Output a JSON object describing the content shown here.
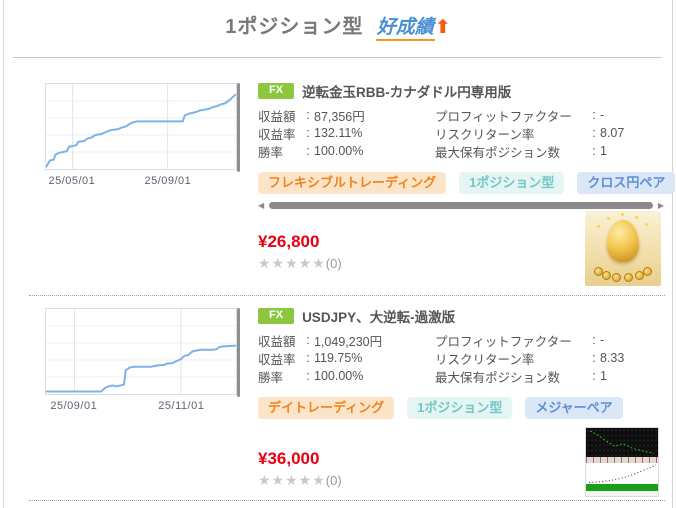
{
  "ui": {
    "colon": ":"
  },
  "header": {
    "title": "1ポジション型",
    "highlight": "好成績",
    "arrow": "⬆"
  },
  "icons": {
    "scroll_left": "◀",
    "scroll_right": "▶"
  },
  "products": [
    {
      "badge": "FX",
      "title": "逆転金玉RBB-カナダドル円専用版",
      "stats_left": [
        {
          "label": "収益額",
          "value": "87,356円"
        },
        {
          "label": "収益率",
          "value": "132.11%"
        },
        {
          "label": "勝率",
          "value": "100.00%"
        }
      ],
      "stats_right": [
        {
          "label": "プロフィットファクター",
          "value": "-"
        },
        {
          "label": "リスクリターン率",
          "value": "8.07"
        },
        {
          "label": "最大保有ポジション数",
          "value": "1"
        }
      ],
      "tags": [
        {
          "label": "フレキシブルトレーディング",
          "style": "orange"
        },
        {
          "label": "1ポジション型",
          "style": "teal"
        },
        {
          "label": "クロス円ペア",
          "style": "blue"
        }
      ],
      "price": "¥26,800",
      "stars": "★★★★★",
      "reviews": "(0)",
      "thumbnail": "golden-egg-with-coins"
    },
    {
      "badge": "FX",
      "title": "USDJPY、大逆転-過激版",
      "stats_left": [
        {
          "label": "収益額",
          "value": "1,049,230円"
        },
        {
          "label": "収益率",
          "value": "119.75%"
        },
        {
          "label": "勝率",
          "value": "100.00%"
        }
      ],
      "stats_right": [
        {
          "label": "プロフィットファクター",
          "value": "-"
        },
        {
          "label": "リスクリターン率",
          "value": "8.33"
        },
        {
          "label": "最大保有ポジション数",
          "value": "1"
        }
      ],
      "tags": [
        {
          "label": "デイトレーディング",
          "style": "orange"
        },
        {
          "label": "1ポジション型",
          "style": "teal"
        },
        {
          "label": "メジャーペア",
          "style": "blue"
        }
      ],
      "price": "¥36,000",
      "stars": "★★★★★",
      "reviews": "(0)",
      "thumbnail": "mt4-backtest-screenshot"
    }
  ],
  "chart_data": [
    {
      "type": "line",
      "title": "equity curve - 逆転金玉RBB",
      "line_color": "#7cb3e8",
      "grid": true,
      "x_ticks": [
        {
          "label": "25/05/01",
          "x": 14
        },
        {
          "label": "25/09/01",
          "x": 64
        }
      ],
      "points": [
        [
          0,
          2
        ],
        [
          1,
          6
        ],
        [
          2,
          10
        ],
        [
          4,
          11
        ],
        [
          5,
          17
        ],
        [
          7,
          19
        ],
        [
          9,
          20
        ],
        [
          11,
          21
        ],
        [
          12,
          26
        ],
        [
          14,
          27
        ],
        [
          16,
          28
        ],
        [
          17,
          32
        ],
        [
          20,
          33
        ],
        [
          22,
          36
        ],
        [
          24,
          37
        ],
        [
          26,
          40
        ],
        [
          29,
          41
        ],
        [
          31,
          43
        ],
        [
          33,
          45
        ],
        [
          35,
          46
        ],
        [
          38,
          47
        ],
        [
          40,
          49
        ],
        [
          42,
          50
        ],
        [
          44,
          53
        ],
        [
          46,
          55
        ],
        [
          48,
          56
        ],
        [
          50,
          56
        ],
        [
          72,
          56
        ],
        [
          73,
          63
        ],
        [
          75,
          65
        ],
        [
          77,
          66
        ],
        [
          79,
          67
        ],
        [
          81,
          69
        ],
        [
          84,
          70
        ],
        [
          86,
          71
        ],
        [
          88,
          73
        ],
        [
          90,
          74
        ],
        [
          92,
          76
        ],
        [
          94,
          77
        ],
        [
          96,
          80
        ],
        [
          98,
          84
        ],
        [
          100,
          88
        ]
      ]
    },
    {
      "type": "line",
      "title": "equity curve - USDJPY大逆転",
      "line_color": "#7cb3e8",
      "grid": true,
      "x_ticks": [
        {
          "label": "25/09/01",
          "x": 15
        },
        {
          "label": "25/11/01",
          "x": 71
        }
      ],
      "points": [
        [
          0,
          3
        ],
        [
          29,
          3
        ],
        [
          31,
          7
        ],
        [
          33,
          9
        ],
        [
          35,
          10
        ],
        [
          37,
          9
        ],
        [
          39,
          10
        ],
        [
          41,
          11
        ],
        [
          42,
          28
        ],
        [
          44,
          31
        ],
        [
          46,
          32
        ],
        [
          55,
          32
        ],
        [
          57,
          33
        ],
        [
          60,
          34
        ],
        [
          62,
          34
        ],
        [
          64,
          36
        ],
        [
          66,
          36
        ],
        [
          68,
          38
        ],
        [
          70,
          40
        ],
        [
          71,
          41
        ],
        [
          73,
          45
        ],
        [
          75,
          46
        ],
        [
          77,
          50
        ],
        [
          79,
          51
        ],
        [
          81,
          52
        ],
        [
          88,
          52
        ],
        [
          90,
          53
        ],
        [
          91,
          55
        ],
        [
          93,
          56
        ],
        [
          100,
          57
        ]
      ]
    }
  ],
  "colors": {
    "badge_green": "#8dc63f",
    "price_red": "#e60012",
    "highlight_blue": "#4a8fd3",
    "accent_orange": "#f7931e",
    "chart_line_blue": "#7cb3e8",
    "tag_orange_text": "#f0831e",
    "tag_teal_text": "#72c7c7",
    "tag_blue_text": "#5b8fd6"
  }
}
